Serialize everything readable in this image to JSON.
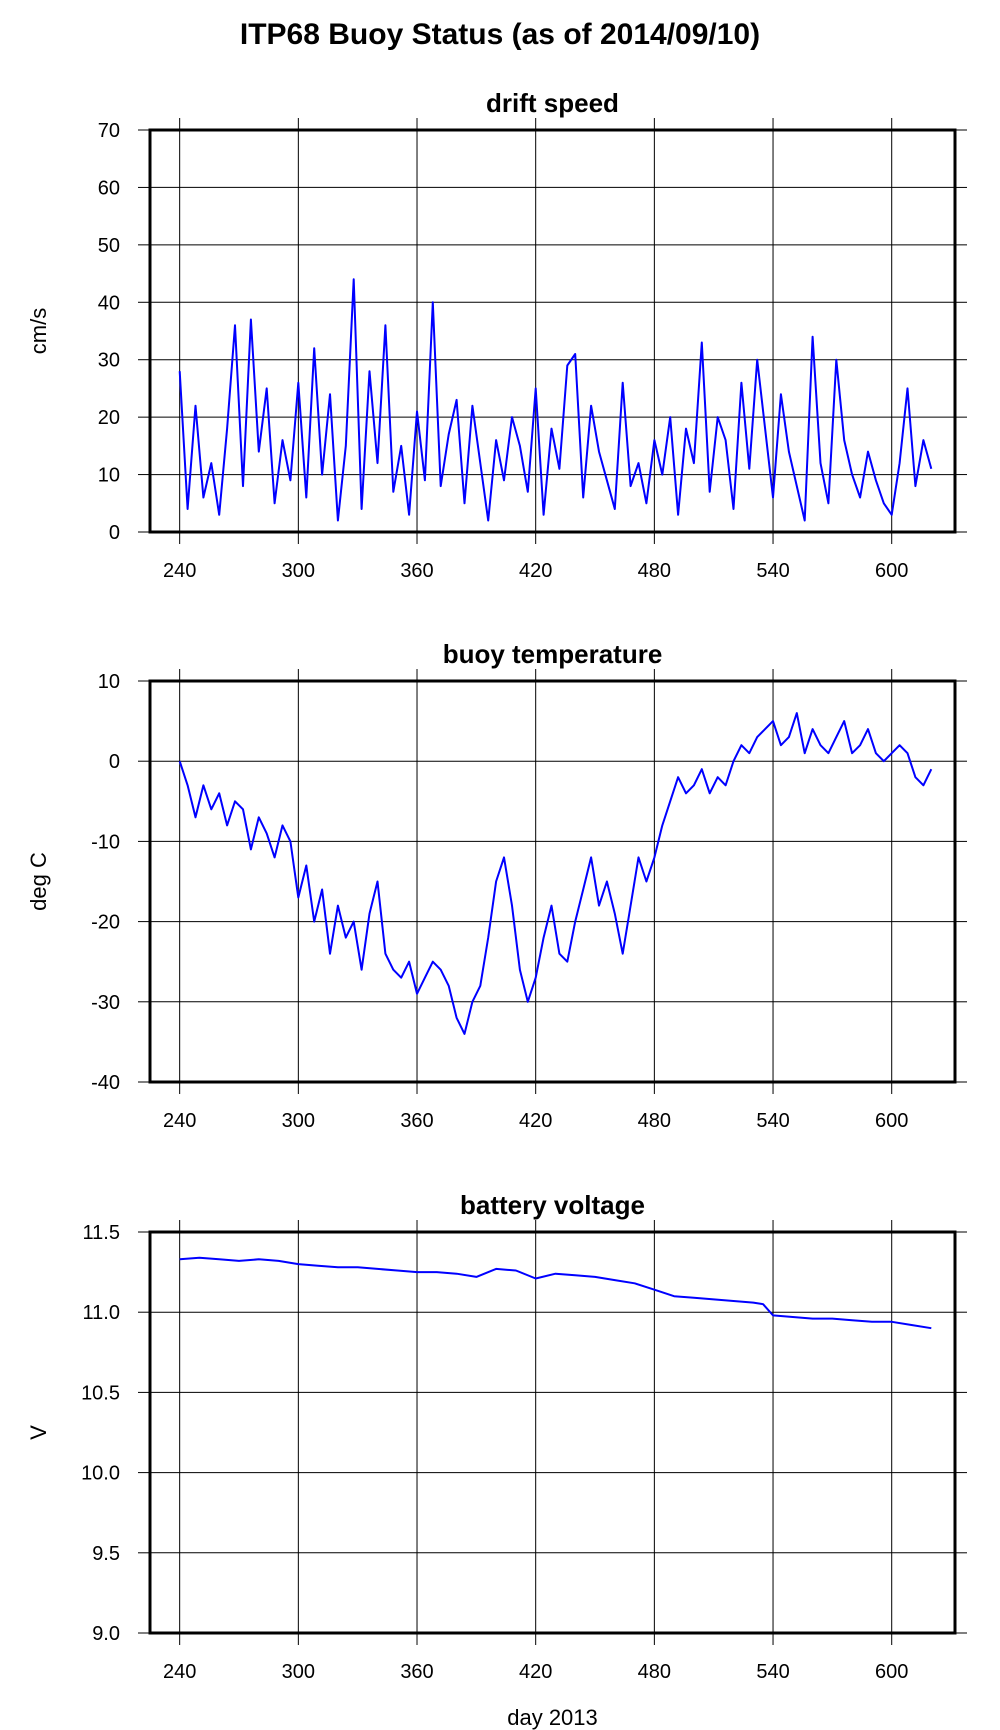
{
  "page": {
    "title": "ITP68 Buoy Status (as of 2014/09/10)"
  },
  "colors": {
    "series": "#0000ff",
    "grid": "#000000",
    "background": "#ffffff"
  },
  "chart_data": [
    {
      "type": "line",
      "title": "drift speed",
      "xlabel": "",
      "ylabel": "cm/s",
      "xlim": [
        225,
        632
      ],
      "ylim": [
        0,
        70
      ],
      "xticks": [
        240,
        300,
        360,
        420,
        480,
        540,
        600
      ],
      "yticks": [
        0,
        10,
        20,
        30,
        40,
        50,
        60,
        70
      ],
      "ytick_labels": [
        "0",
        "10",
        "20",
        "30",
        "40",
        "50",
        "60",
        "70"
      ],
      "grid": true,
      "series": [
        {
          "x": [
            240,
            244,
            248,
            252,
            256,
            260,
            264,
            268,
            272,
            276,
            280,
            284,
            288,
            292,
            296,
            300,
            304,
            308,
            312,
            316,
            320,
            324,
            328,
            332,
            336,
            340,
            344,
            348,
            352,
            356,
            360,
            364,
            368,
            372,
            376,
            380,
            384,
            388,
            392,
            396,
            400,
            404,
            408,
            412,
            416,
            420,
            424,
            428,
            432,
            436,
            440,
            444,
            448,
            452,
            456,
            460,
            464,
            468,
            472,
            476,
            480,
            484,
            488,
            492,
            496,
            500,
            504,
            508,
            512,
            516,
            520,
            524,
            528,
            532,
            536,
            540,
            544,
            548,
            552,
            556,
            560,
            564,
            568,
            572,
            576,
            580,
            584,
            588,
            592,
            596,
            600,
            604,
            608,
            612,
            616,
            620
          ],
          "y": [
            28,
            4,
            22,
            6,
            12,
            3,
            18,
            36,
            8,
            37,
            14,
            25,
            5,
            16,
            9,
            26,
            6,
            32,
            10,
            24,
            2,
            15,
            44,
            4,
            28,
            12,
            36,
            7,
            15,
            3,
            21,
            9,
            40,
            8,
            17,
            23,
            5,
            22,
            12,
            2,
            16,
            9,
            20,
            15,
            7,
            25,
            3,
            18,
            11,
            29,
            31,
            6,
            22,
            14,
            9,
            4,
            26,
            8,
            12,
            5,
            16,
            10,
            20,
            3,
            18,
            12,
            33,
            7,
            20,
            16,
            4,
            26,
            11,
            30,
            18,
            6,
            24,
            14,
            8,
            2,
            34,
            12,
            5,
            30,
            16,
            10,
            6,
            14,
            9,
            5,
            3,
            12,
            25,
            8,
            16,
            11
          ]
        }
      ]
    },
    {
      "type": "line",
      "title": "buoy temperature",
      "xlabel": "",
      "ylabel": "deg C",
      "xlim": [
        225,
        632
      ],
      "ylim": [
        -40,
        10
      ],
      "xticks": [
        240,
        300,
        360,
        420,
        480,
        540,
        600
      ],
      "yticks": [
        -40,
        -30,
        -20,
        -10,
        0,
        10
      ],
      "ytick_labels": [
        "-40",
        "-30",
        "-20",
        "-10",
        "0",
        "10"
      ],
      "grid": true,
      "series": [
        {
          "x": [
            240,
            244,
            248,
            252,
            256,
            260,
            264,
            268,
            272,
            276,
            280,
            284,
            288,
            292,
            296,
            300,
            304,
            308,
            312,
            316,
            320,
            324,
            328,
            332,
            336,
            340,
            344,
            348,
            352,
            356,
            360,
            364,
            368,
            372,
            376,
            380,
            384,
            388,
            392,
            396,
            400,
            404,
            408,
            412,
            416,
            420,
            424,
            428,
            432,
            436,
            440,
            444,
            448,
            452,
            456,
            460,
            464,
            468,
            472,
            476,
            480,
            484,
            488,
            492,
            496,
            500,
            504,
            508,
            512,
            516,
            520,
            524,
            528,
            532,
            536,
            540,
            544,
            548,
            552,
            556,
            560,
            564,
            568,
            572,
            576,
            580,
            584,
            588,
            592,
            596,
            600,
            604,
            608,
            612,
            616,
            620
          ],
          "y": [
            0,
            -3,
            -7,
            -3,
            -6,
            -4,
            -8,
            -5,
            -6,
            -11,
            -7,
            -9,
            -12,
            -8,
            -10,
            -17,
            -13,
            -20,
            -16,
            -24,
            -18,
            -22,
            -20,
            -26,
            -19,
            -15,
            -24,
            -26,
            -27,
            -25,
            -29,
            -27,
            -25,
            -26,
            -28,
            -32,
            -34,
            -30,
            -28,
            -22,
            -15,
            -12,
            -18,
            -26,
            -30,
            -27,
            -22,
            -18,
            -24,
            -25,
            -20,
            -16,
            -12,
            -18,
            -15,
            -19,
            -24,
            -18,
            -12,
            -15,
            -12,
            -8,
            -5,
            -2,
            -4,
            -3,
            -1,
            -4,
            -2,
            -3,
            0,
            2,
            1,
            3,
            4,
            5,
            2,
            3,
            6,
            1,
            4,
            2,
            1,
            3,
            5,
            1,
            2,
            4,
            1,
            0,
            1,
            2,
            1,
            -2,
            -3,
            -1
          ]
        }
      ]
    },
    {
      "type": "line",
      "title": "battery voltage",
      "xlabel": "day 2013",
      "ylabel": "V",
      "xlim": [
        225,
        632
      ],
      "ylim": [
        9.0,
        11.5
      ],
      "xticks": [
        240,
        300,
        360,
        420,
        480,
        540,
        600
      ],
      "yticks": [
        9.0,
        9.5,
        10.0,
        10.5,
        11.0,
        11.5
      ],
      "ytick_labels": [
        "9.0",
        "9.5",
        "10.0",
        "10.5",
        "11.0",
        "11.5"
      ],
      "grid": true,
      "series": [
        {
          "x": [
            240,
            250,
            260,
            270,
            280,
            290,
            300,
            310,
            320,
            330,
            340,
            350,
            360,
            370,
            380,
            390,
            400,
            410,
            420,
            430,
            440,
            450,
            460,
            470,
            480,
            490,
            500,
            510,
            520,
            530,
            535,
            540,
            550,
            560,
            570,
            580,
            590,
            600,
            610,
            620
          ],
          "y": [
            11.33,
            11.34,
            11.33,
            11.32,
            11.33,
            11.32,
            11.3,
            11.29,
            11.28,
            11.28,
            11.27,
            11.26,
            11.25,
            11.25,
            11.24,
            11.22,
            11.27,
            11.26,
            11.21,
            11.24,
            11.23,
            11.22,
            11.2,
            11.18,
            11.14,
            11.1,
            11.09,
            11.08,
            11.07,
            11.06,
            11.05,
            10.98,
            10.97,
            10.96,
            10.96,
            10.95,
            10.94,
            10.94,
            10.92,
            10.9
          ]
        }
      ]
    }
  ]
}
